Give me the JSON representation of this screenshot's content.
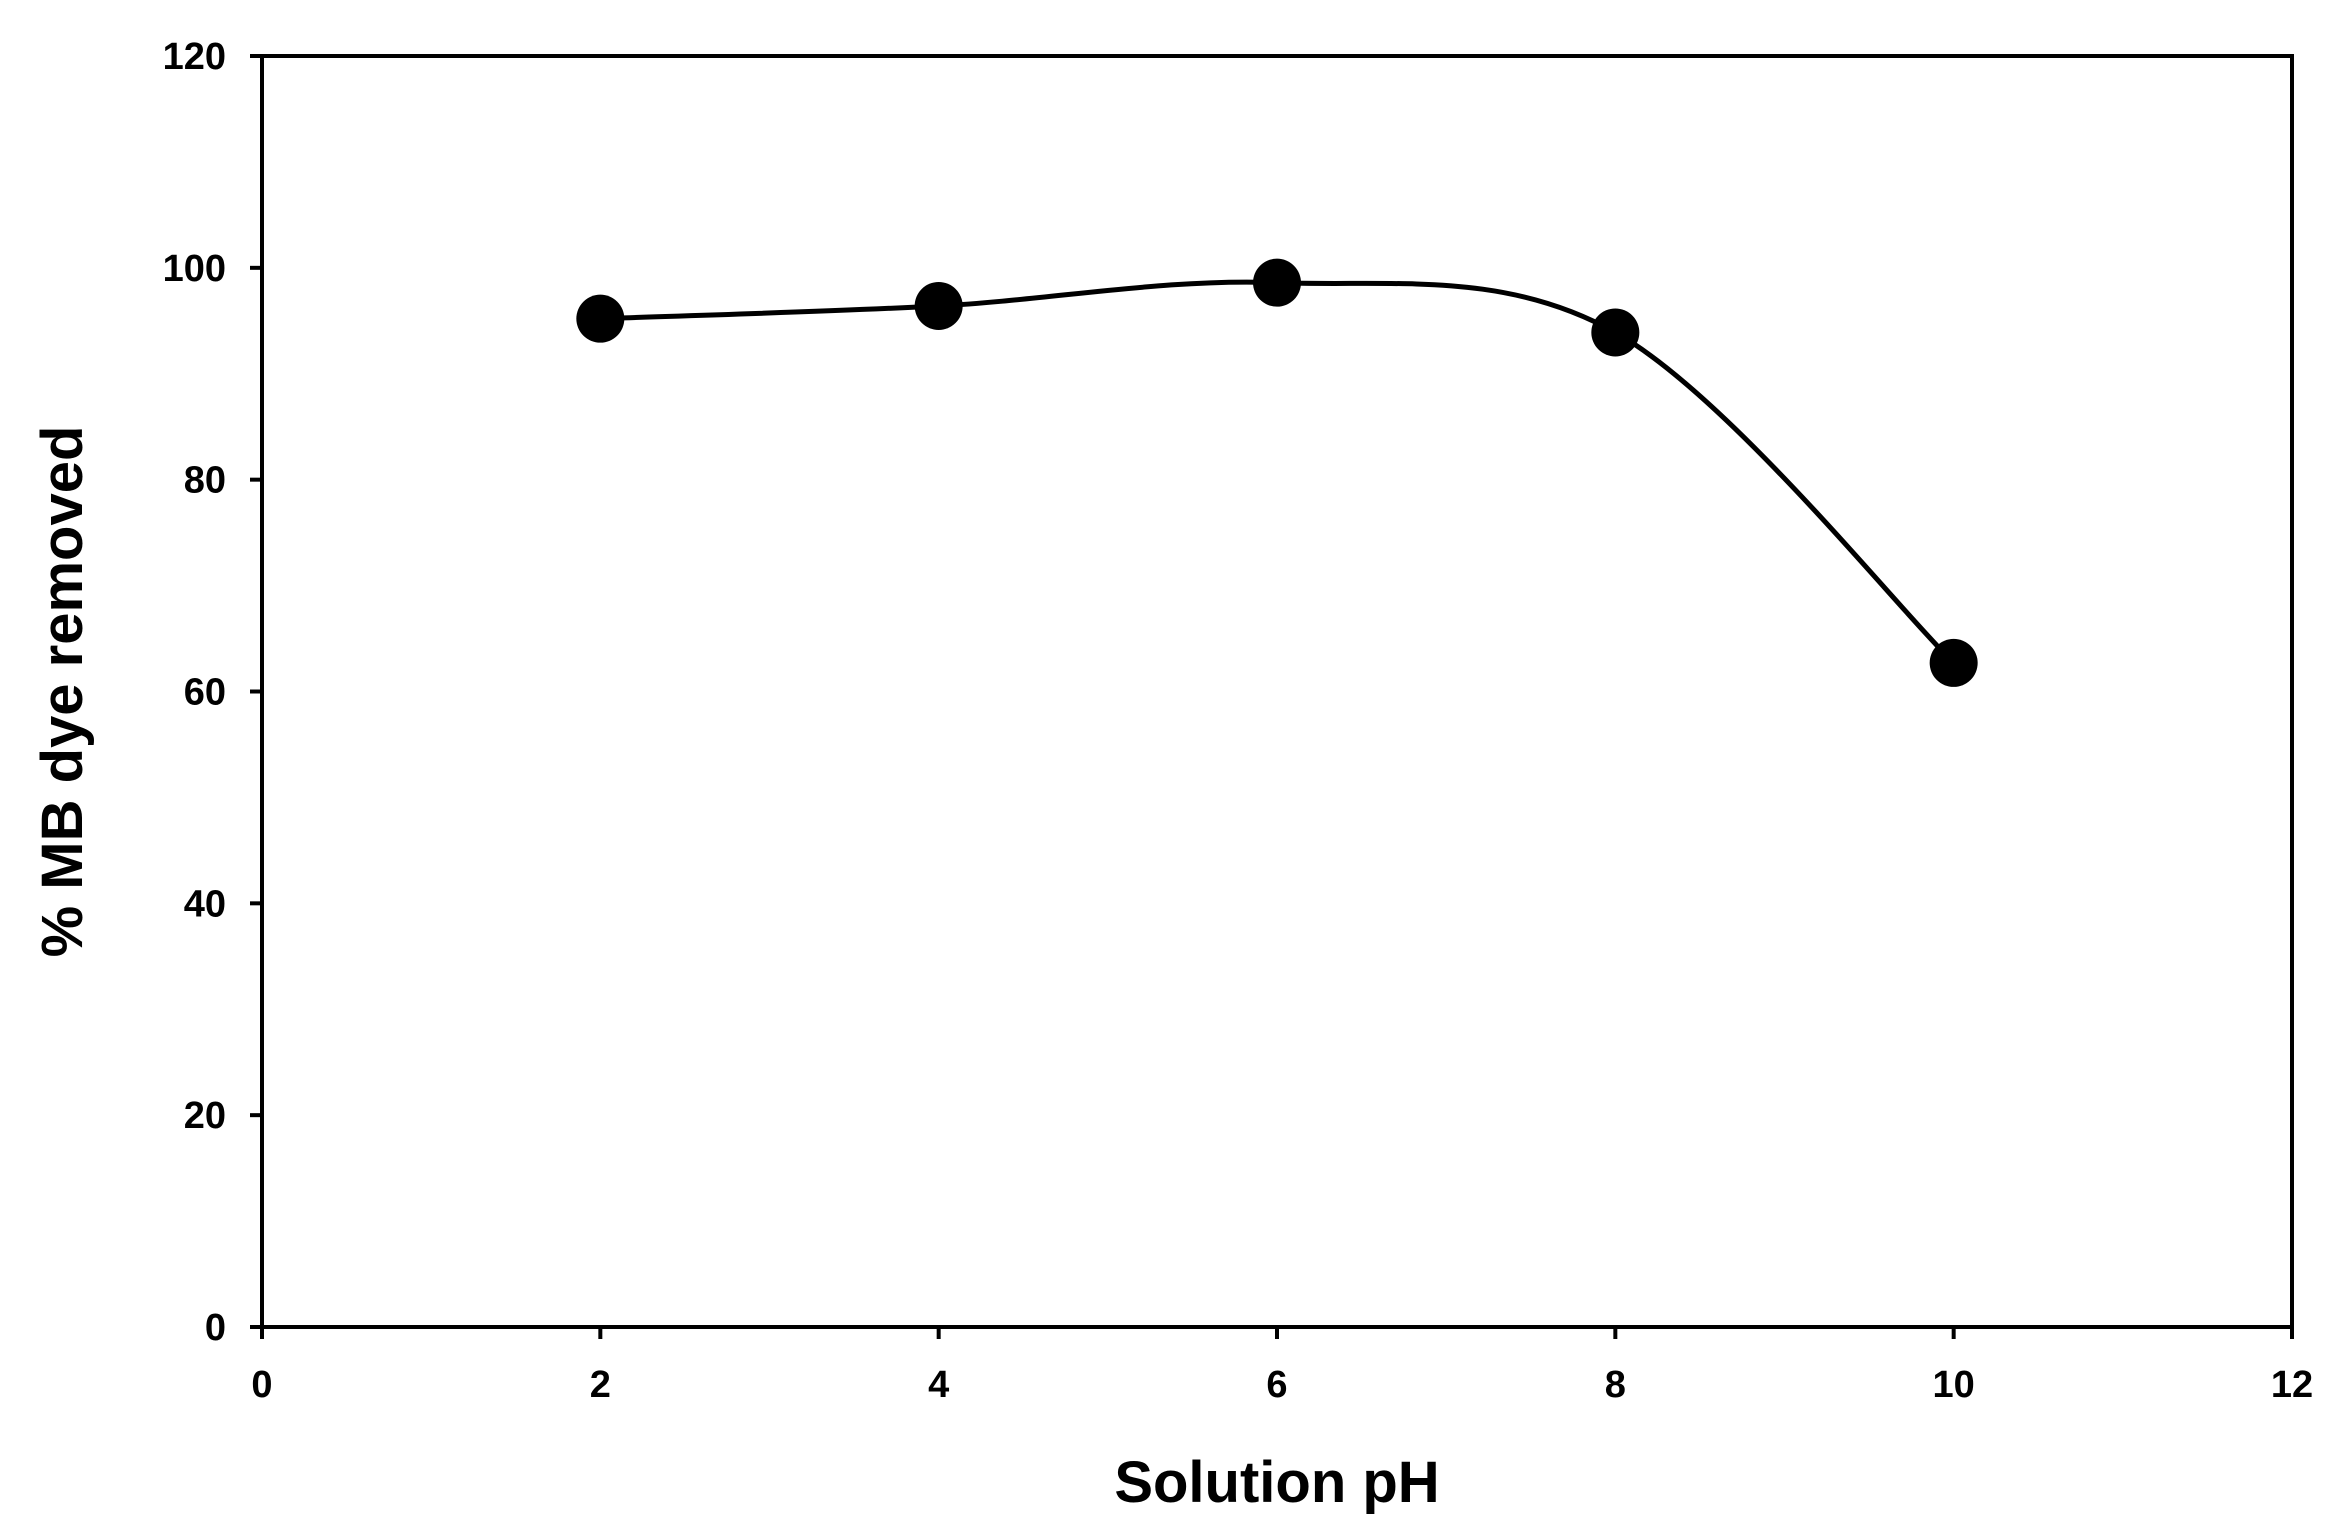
{
  "chart_data": {
    "type": "scatter",
    "title": "",
    "xlabel": "Solution pH",
    "ylabel": "% MB dye removed",
    "xlim": [
      0,
      12
    ],
    "ylim": [
      0,
      120
    ],
    "xticks": [
      0,
      2,
      4,
      6,
      8,
      10,
      12
    ],
    "yticks": [
      0,
      20,
      40,
      60,
      80,
      100,
      120
    ],
    "grid": false,
    "smooth_line": true,
    "series": [
      {
        "x": [
          2,
          4,
          6,
          8,
          10
        ],
        "y": [
          95.2,
          96.4,
          98.6,
          93.9,
          62.7
        ]
      }
    ],
    "colors": {
      "line": "#000000",
      "marker": "#000000",
      "axis": "#000000"
    }
  }
}
